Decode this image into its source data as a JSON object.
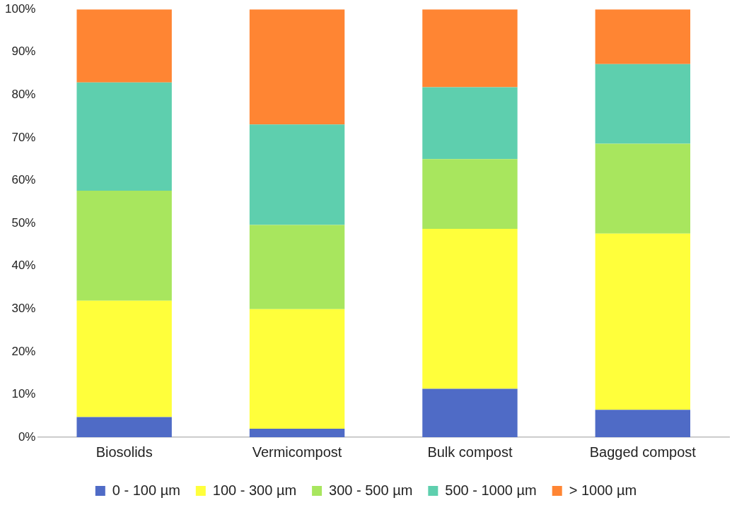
{
  "chart_data": {
    "type": "bar",
    "stacked": true,
    "categories": [
      "Biosolids",
      "Vermicompost",
      "Bulk compost",
      "Bagged compost"
    ],
    "series": [
      {
        "name": "0 - 100 µm",
        "color": "#4f6bc6",
        "values": [
          4.7,
          2.0,
          11.3,
          6.4
        ]
      },
      {
        "name": "100 - 300 µm",
        "color": "#ffff3b",
        "values": [
          27.2,
          27.9,
          37.4,
          41.2
        ]
      },
      {
        "name": "300 - 500 µm",
        "color": "#a8e65e",
        "values": [
          25.7,
          19.7,
          16.3,
          21.0
        ]
      },
      {
        "name": "500 - 1000 µm",
        "color": "#5ecfae",
        "values": [
          25.3,
          23.5,
          16.8,
          18.6
        ]
      },
      {
        "name": "> 1000 µm",
        "color": "#ff8533",
        "values": [
          17.1,
          26.9,
          18.2,
          12.8
        ]
      }
    ],
    "ylim": [
      0,
      100
    ],
    "yticks": [
      {
        "value": 0,
        "label": "0%"
      },
      {
        "value": 10,
        "label": "10%"
      },
      {
        "value": 20,
        "label": "20%"
      },
      {
        "value": 30,
        "label": "30%"
      },
      {
        "value": 40,
        "label": "40%"
      },
      {
        "value": 50,
        "label": "50%"
      },
      {
        "value": 60,
        "label": "60%"
      },
      {
        "value": 70,
        "label": "70%"
      },
      {
        "value": 80,
        "label": "80%"
      },
      {
        "value": 90,
        "label": "90%"
      },
      {
        "value": 100,
        "label": "100%"
      }
    ],
    "grid": false,
    "legend": "bottom"
  }
}
